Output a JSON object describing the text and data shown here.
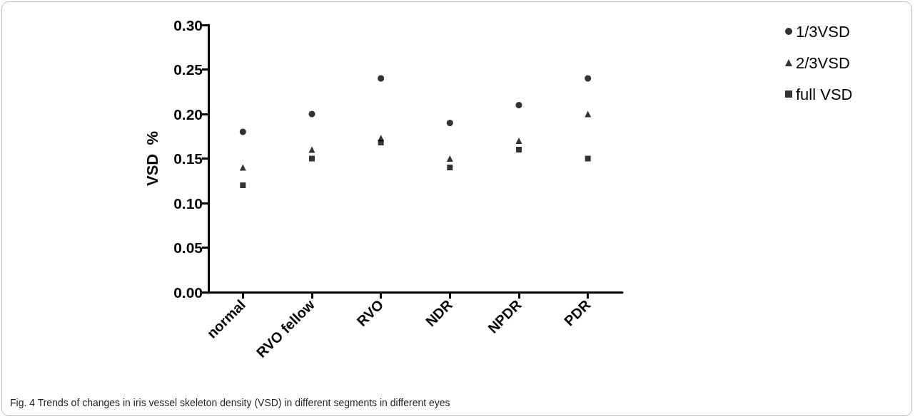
{
  "chart_data": {
    "type": "scatter",
    "categories": [
      "normal",
      "RVO fellow",
      "RVO",
      "NDR",
      "NPDR",
      "PDR"
    ],
    "series": [
      {
        "name": "1/3VSD",
        "color": "#000000",
        "marker": "circle",
        "values": [
          0.18,
          0.2,
          0.24,
          0.19,
          0.21,
          0.24
        ]
      },
      {
        "name": "2/3VSD",
        "color": "#000000",
        "marker": "triangle",
        "values": [
          0.14,
          0.16,
          0.173,
          0.15,
          0.17,
          0.2
        ]
      },
      {
        "name": "full VSD",
        "color": "#000000",
        "marker": "square",
        "values": [
          0.12,
          0.15,
          0.168,
          0.14,
          0.16,
          0.15
        ]
      }
    ],
    "ylabel": "VSD  %",
    "ylim": [
      0,
      0.3
    ],
    "yticks": [
      {
        "value": 0,
        "label": "0.00"
      },
      0.05,
      {
        "value": 0.1,
        "label": "0.10"
      },
      0.15,
      {
        "value": 0.2,
        "label": "0.20"
      },
      0.25,
      {
        "value": 0.3,
        "label": "0.30"
      }
    ],
    "grid": false,
    "legend": "top right",
    "annotations": [
      "Fig. 4 Trends of changes in iris vessel skeleton density (VSD) in different segments in different eyes"
    ]
  }
}
